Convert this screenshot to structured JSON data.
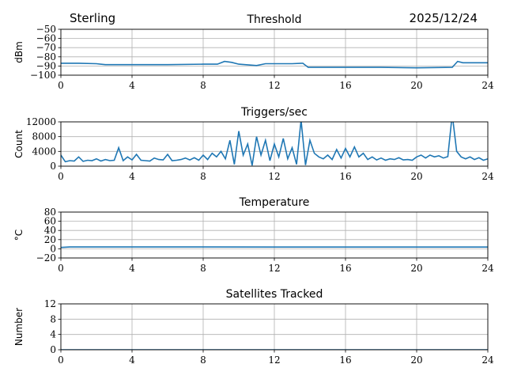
{
  "header": {
    "station": "Sterling",
    "date": "2025/12/24"
  },
  "line_color": "#1f77b4",
  "chart_data": [
    {
      "type": "line",
      "title": "Threshold",
      "ylabel": "dBm",
      "xlabel": "",
      "xlim": [
        0,
        24
      ],
      "ylim": [
        -100,
        -50
      ],
      "xticks": [
        0,
        4,
        8,
        12,
        16,
        20,
        24
      ],
      "yticks": [
        -100,
        -90,
        -80,
        -70,
        -60,
        -50
      ],
      "ytick_labels": [
        "−100",
        "−90",
        "−80",
        "−70",
        "−60",
        "−50"
      ],
      "grid": true,
      "x": [
        0,
        1,
        2,
        2.5,
        4,
        6,
        8,
        8.8,
        9.2,
        9.6,
        10,
        11,
        11.5,
        12,
        13,
        13.6,
        13.9,
        16,
        18,
        20,
        22,
        22.3,
        22.6,
        24
      ],
      "y": [
        -87,
        -87,
        -87.5,
        -88.5,
        -88.5,
        -88.5,
        -88,
        -88,
        -85,
        -86,
        -88,
        -89.5,
        -87.5,
        -87.5,
        -87.5,
        -87,
        -91.5,
        -91.5,
        -91.5,
        -92,
        -91.5,
        -85,
        -86.5,
        -86.5
      ]
    },
    {
      "type": "line",
      "title": "Triggers/sec",
      "ylabel": "Count",
      "xlabel": "",
      "xlim": [
        0,
        24
      ],
      "ylim": [
        0,
        12000
      ],
      "xticks": [
        0,
        4,
        8,
        12,
        16,
        20,
        24
      ],
      "yticks": [
        0,
        4000,
        8000,
        12000
      ],
      "ytick_labels": [
        "0",
        "4000",
        "8000",
        "12000"
      ],
      "grid": true,
      "x_start": 0,
      "x_step": 0.25,
      "y": [
        3000,
        1200,
        1500,
        1400,
        2500,
        1300,
        1600,
        1500,
        2000,
        1400,
        1800,
        1500,
        1600,
        5000,
        1500,
        2500,
        1700,
        3200,
        1600,
        1500,
        1400,
        2200,
        1800,
        1700,
        3200,
        1500,
        1600,
        1800,
        2200,
        1700,
        2300,
        1600,
        3000,
        1800,
        3500,
        2500,
        4000,
        2000,
        7000,
        500,
        9500,
        3000,
        6000,
        200,
        8000,
        3000,
        7000,
        1500,
        6000,
        2500,
        7500,
        2000,
        5000,
        500,
        12500,
        300,
        7000,
        3500,
        2500,
        2000,
        3000,
        1800,
        4500,
        2200,
        4800,
        2500,
        5200,
        2500,
        3500,
        1800,
        2500,
        1700,
        2200,
        1600,
        2000,
        1800,
        2300,
        1700,
        1800,
        1600,
        2500,
        3000,
        2200,
        3000,
        2500,
        2800,
        2200,
        2600,
        14000,
        4000,
        2500,
        2000,
        2500,
        1800,
        2300,
        1600,
        2000
      ]
    },
    {
      "type": "line",
      "title": "Temperature",
      "ylabel": "°C",
      "xlabel": "",
      "xlim": [
        0,
        24
      ],
      "ylim": [
        -20,
        80
      ],
      "xticks": [
        0,
        4,
        8,
        12,
        16,
        20,
        24
      ],
      "yticks": [
        -20,
        0,
        20,
        40,
        60,
        80
      ],
      "ytick_labels": [
        "−20",
        "0",
        "20",
        "40",
        "60",
        "80"
      ],
      "grid": true,
      "x": [
        0,
        0.5,
        1,
        4,
        8,
        12,
        16,
        20,
        24
      ],
      "y": [
        3,
        4,
        4,
        4,
        4,
        3.8,
        3.8,
        3.8,
        3.8
      ]
    },
    {
      "type": "line",
      "title": "Satellites Tracked",
      "ylabel": "Number",
      "xlabel": "",
      "xlim": [
        0,
        24
      ],
      "ylim": [
        0,
        12
      ],
      "xticks": [
        0,
        4,
        8,
        12,
        16,
        20,
        24
      ],
      "yticks": [
        0,
        4,
        8,
        12
      ],
      "ytick_labels": [
        "0",
        "4",
        "8",
        "12"
      ],
      "grid": true,
      "x": [
        0,
        24
      ],
      "y": [
        0,
        0
      ]
    }
  ]
}
